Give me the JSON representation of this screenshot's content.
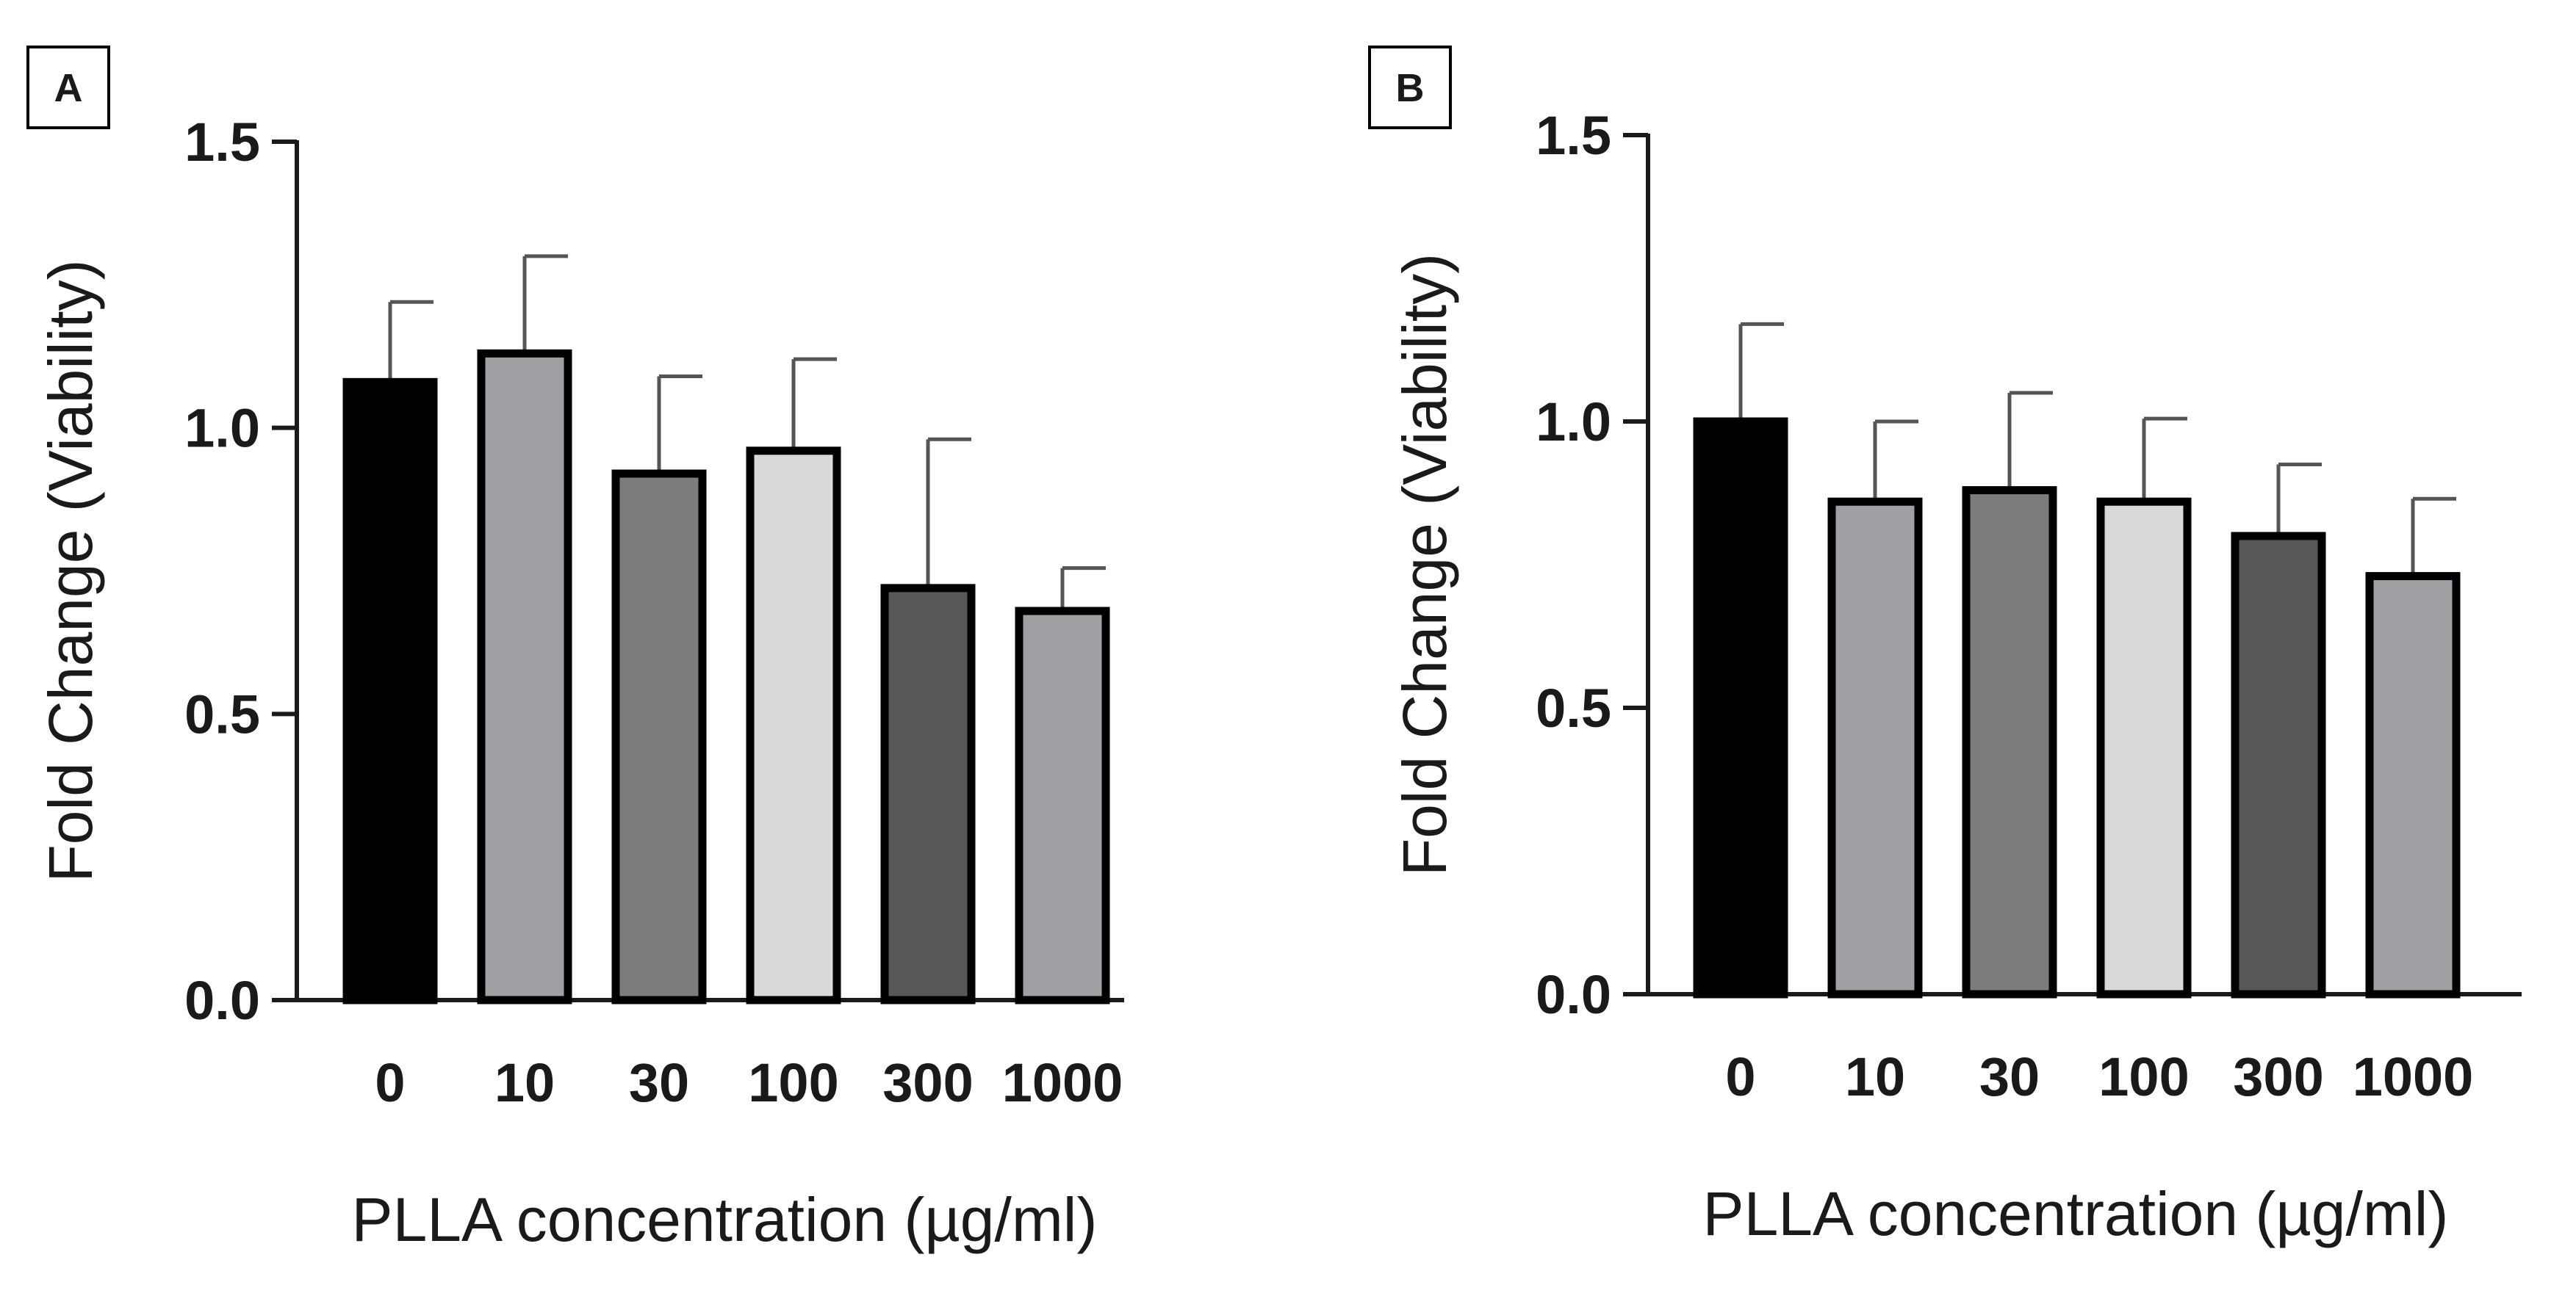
{
  "chart_data": [
    {
      "panel": "A",
      "type": "bar",
      "categories": [
        "0",
        "10",
        "30",
        "100",
        "300",
        "1000"
      ],
      "values": [
        1.08,
        1.13,
        0.92,
        0.96,
        0.72,
        0.68
      ],
      "errors": [
        0.14,
        0.17,
        0.17,
        0.16,
        0.26,
        0.075
      ],
      "bar_colors": [
        "#000000",
        "#a0a0a4",
        "#7c7c7c",
        "#d9d9d9",
        "#585858",
        "#a0a0a4"
      ],
      "y_ticks": [
        "0.0",
        "0.5",
        "1.0",
        "1.5"
      ],
      "ylim": [
        0,
        1.5
      ],
      "xlabel": "PLLA concentration (µg/ml)",
      "ylabel": "Fold Change (Viability)"
    },
    {
      "panel": "B",
      "type": "bar",
      "categories": [
        "0",
        "10",
        "30",
        "100",
        "300",
        "1000"
      ],
      "values": [
        1.0,
        0.86,
        0.88,
        0.86,
        0.8,
        0.73
      ],
      "errors": [
        0.17,
        0.14,
        0.17,
        0.145,
        0.125,
        0.135
      ],
      "bar_colors": [
        "#000000",
        "#a0a0a4",
        "#7c7c7c",
        "#d9d9d9",
        "#585858",
        "#a0a0a4"
      ],
      "y_ticks": [
        "0.0",
        "0.5",
        "1.0",
        "1.5"
      ],
      "ylim": [
        0,
        1.5
      ],
      "xlabel": "PLLA concentration (µg/ml)",
      "ylabel": "Fold Change (Viability)"
    }
  ]
}
